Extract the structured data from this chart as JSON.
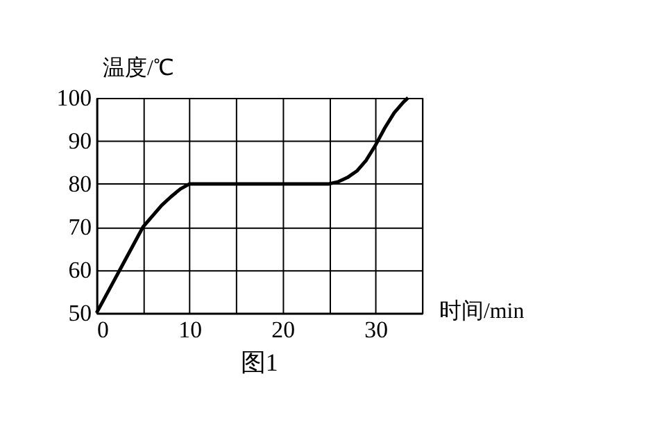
{
  "chart_data": {
    "type": "line",
    "xlabel": "时间/min",
    "ylabel": "温度/℃",
    "annotations": [
      "图1"
    ],
    "x": [
      0,
      1,
      2,
      3,
      4,
      5,
      6,
      7,
      8,
      9,
      10,
      25,
      26,
      27,
      28,
      29,
      30,
      31,
      32,
      33,
      33.5
    ],
    "series": [
      {
        "color": "#000000",
        "values": [
          50,
          54,
          58,
          62,
          66,
          70,
          72.5,
          75,
          77,
          78.8,
          80,
          80,
          80.5,
          81.5,
          83,
          85.5,
          89,
          93,
          96.5,
          99,
          100
        ]
      }
    ],
    "xlim": [
      0,
      35
    ],
    "xticks": [
      0,
      {
        "value": 5,
        "label": null
      },
      10,
      {
        "value": 15,
        "label": null
      },
      20,
      {
        "value": 25,
        "label": null
      },
      30,
      {
        "value": 35,
        "label": null
      }
    ],
    "ylim": [
      50,
      100
    ],
    "yticks": [
      50,
      60,
      70,
      80,
      90,
      100
    ],
    "grid": true,
    "marker": "none",
    "line_style": "solid"
  }
}
